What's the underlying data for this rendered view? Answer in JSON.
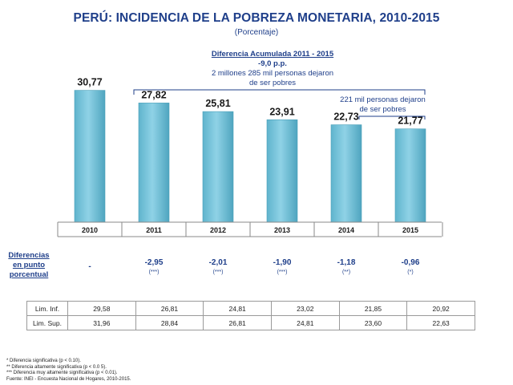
{
  "title": "PERÚ: INCIDENCIA DE LA POBREZA MONETARIA, 2010-2015",
  "subtitle": "(Porcentaje)",
  "chart_data": {
    "type": "bar",
    "categories": [
      "2010",
      "2011",
      "2012",
      "2013",
      "2014",
      "2015"
    ],
    "values": [
      30.77,
      27.82,
      25.81,
      23.91,
      22.73,
      21.77
    ],
    "value_labels": [
      "30,77",
      "27,82",
      "25,81",
      "23,91",
      "22,73",
      "21,77"
    ],
    "bar_color": "#6fc1d8",
    "ylim": [
      0,
      35
    ],
    "grid": false
  },
  "annotations": {
    "accumulated": {
      "title": "Diferencia Acumulada 2011 - 2015",
      "value": "-9,0 p.p.",
      "line1": "2 millones 285 mil  personas dejaron",
      "line2": "de ser pobres"
    },
    "recent": {
      "line1": "221 mil personas dejaron",
      "line2": "de ser pobres"
    }
  },
  "differences": {
    "label_lines": [
      "Diferencias",
      "en punto",
      "porcentual"
    ],
    "values": [
      "-",
      "-2,95",
      "-2,01",
      "-1,90",
      "-1,18",
      "-0,96"
    ],
    "significance": [
      "",
      "(***)",
      "(***)",
      "(***)",
      "(**)",
      "(*)"
    ]
  },
  "limits": {
    "rows": [
      {
        "label": "Lim. Inf.",
        "values": [
          "29,58",
          "26,81",
          "24,81",
          "23,02",
          "21,85",
          "20,92"
        ]
      },
      {
        "label": "Lim. Sup.",
        "values": [
          "31,96",
          "28,84",
          "26,81",
          "24,81",
          "23,60",
          "22,63"
        ]
      }
    ]
  },
  "footnotes": [
    "* Diferencia significativa (p < 0.10).",
    "** Diferencia altamente significativa (p < 0.0 5).",
    "*** Diferencia muy altamente significativa (p < 0.01).",
    "Fuente: INEI - Encuesta Nacional de Hogares, 2010-2015."
  ]
}
